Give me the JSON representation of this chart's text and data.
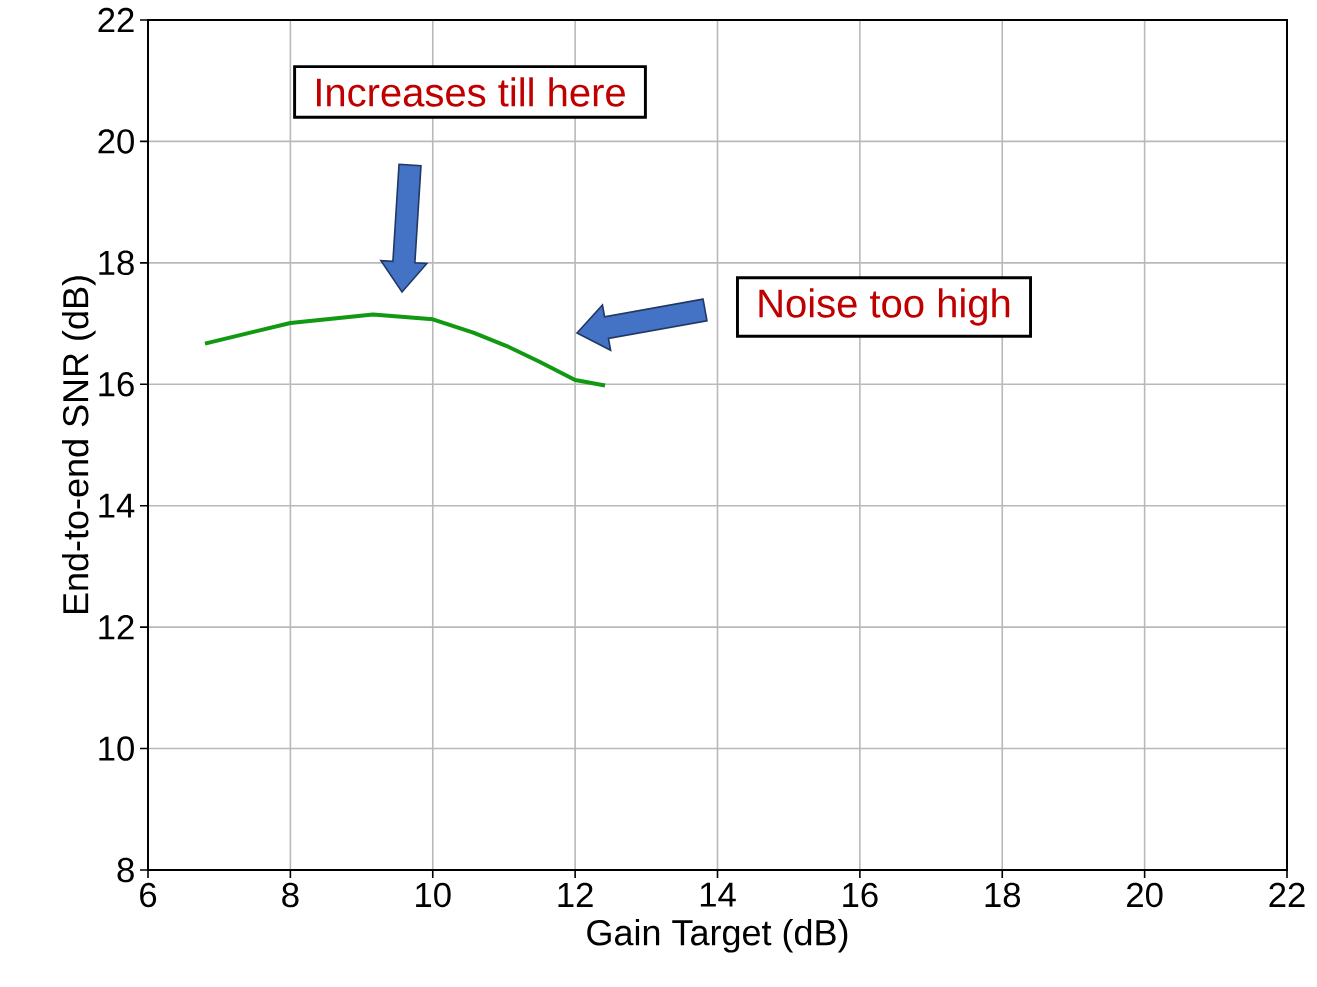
{
  "chart_data": {
    "type": "line",
    "xlabel": "Gain Target (dB)",
    "ylabel": "End-to-end SNR (dB)",
    "x": [
      6.8,
      8.0,
      9.16,
      10.0,
      10.57,
      11.04,
      11.5,
      12.0,
      12.42
    ],
    "values": [
      16.67,
      17.01,
      17.15,
      17.07,
      16.85,
      16.63,
      16.37,
      16.07,
      15.98
    ],
    "color": "#119911",
    "xlim": [
      6,
      22
    ],
    "ylim": [
      8,
      22
    ],
    "xticks": [
      6,
      8,
      10,
      12,
      14,
      16,
      18,
      20,
      22
    ],
    "yticks": [
      8,
      10,
      12,
      14,
      16,
      18,
      20,
      22
    ],
    "grid": true,
    "annotations": [
      "Increases till here",
      "Noise too high"
    ]
  }
}
